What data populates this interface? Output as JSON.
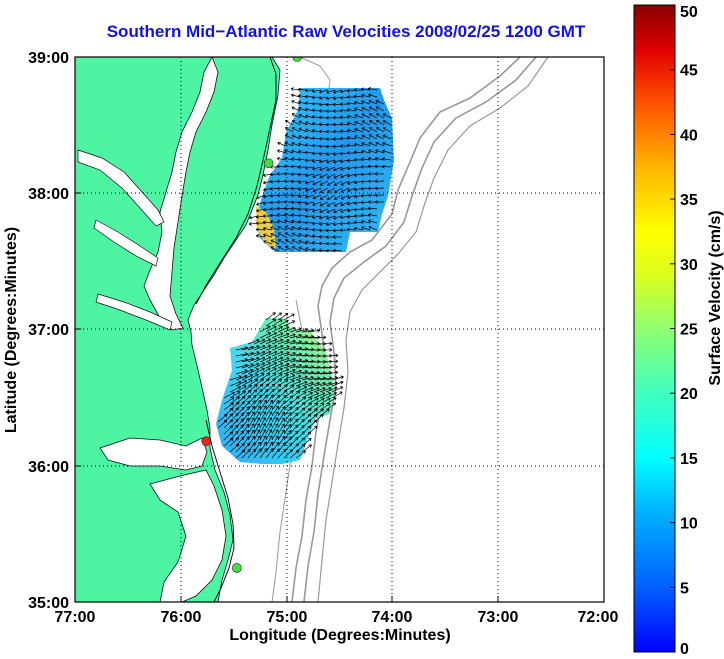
{
  "chart_data": {
    "type": "heatmap",
    "title": "Southern Mid−Atlantic Raw Velocities 2008/02/25 1200 GMT",
    "xlabel": "Longitude (Degrees:Minutes)",
    "ylabel": "Latitude (Degrees:Minutes)",
    "x_tick_labels": [
      "77:00",
      "76:00",
      "75:00",
      "74:00",
      "73:00",
      "72:00"
    ],
    "y_tick_labels": [
      "39:00",
      "38:00",
      "37:00",
      "36:00",
      "35:00"
    ],
    "xlim": [
      -77,
      -72
    ],
    "ylim": [
      35,
      39
    ],
    "grid": true,
    "colorbar": {
      "label": "Surface Velocity (cm/s)",
      "ticks": [
        0,
        5,
        10,
        15,
        20,
        25,
        30,
        35,
        40,
        45,
        50
      ],
      "range": [
        0,
        50
      ],
      "colormap": "jet"
    },
    "land_color": "#4df5a3",
    "vector_color": "#000000",
    "radar_sites": [
      {
        "lon": -74.9,
        "lat": 39.0,
        "color": "#44dd44"
      },
      {
        "lon": -75.17,
        "lat": 38.22,
        "color": "#44dd44"
      },
      {
        "lon": -75.76,
        "lat": 36.18,
        "color": "#ee2222"
      },
      {
        "lon": -75.47,
        "lat": 35.25,
        "color": "#44dd44"
      }
    ]
  }
}
